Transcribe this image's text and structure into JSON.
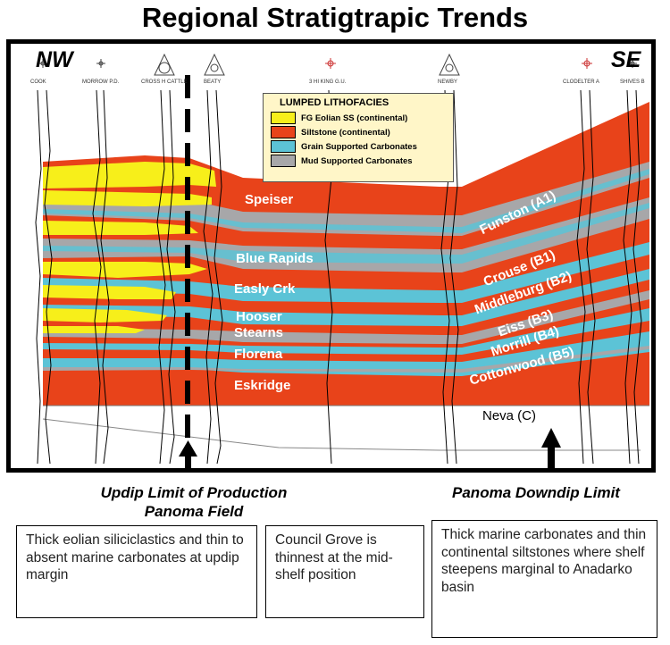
{
  "title": "Regional Stratigtrapic Trends",
  "directions": {
    "left": "NW",
    "right": "SE"
  },
  "wells": [
    "COOK",
    "MORROW P.D.",
    "CROSS H CATTLE",
    "BEATY",
    "3 HI KING G.U.",
    "NEWBY",
    "CLODELTER A",
    "SHIVES B"
  ],
  "legend": {
    "title": "LUMPED LITHOFACIES",
    "items": [
      {
        "label": "FG Eolian SS (continental)",
        "color": "#f7ef1a"
      },
      {
        "label": "Siltstone (continental)",
        "color": "#e8431a"
      },
      {
        "label": "Grain Supported Carbonates",
        "color": "#5cc3d6"
      },
      {
        "label": "Mud Supported Carbonates",
        "color": "#a7a7a9"
      }
    ]
  },
  "formations_left": [
    "Speiser",
    "Blue Rapids",
    "Easly Crk",
    "Hooser",
    "Stearns",
    "Florena",
    "Eskridge"
  ],
  "formations_right": [
    "Funston (A1)",
    "Crouse (B1)",
    "Middleburg (B2)",
    "Eiss (B3)",
    "Morrill (B4)",
    "Cottonwood (B5)"
  ],
  "neva_label": "Neva (C)",
  "captions": {
    "updip": [
      "Updip Limit of Production",
      "Panoma Field"
    ],
    "downdip": "Panoma Downdip Limit"
  },
  "notes": {
    "left": "Thick eolian siliciclastics and thin to absent marine carbonates at updip margin",
    "middle": "Council Grove is thinnest at the mid-shelf position",
    "right": "Thick marine carbonates and thin continental siltstones where shelf steepens marginal to Anadarko basin"
  }
}
